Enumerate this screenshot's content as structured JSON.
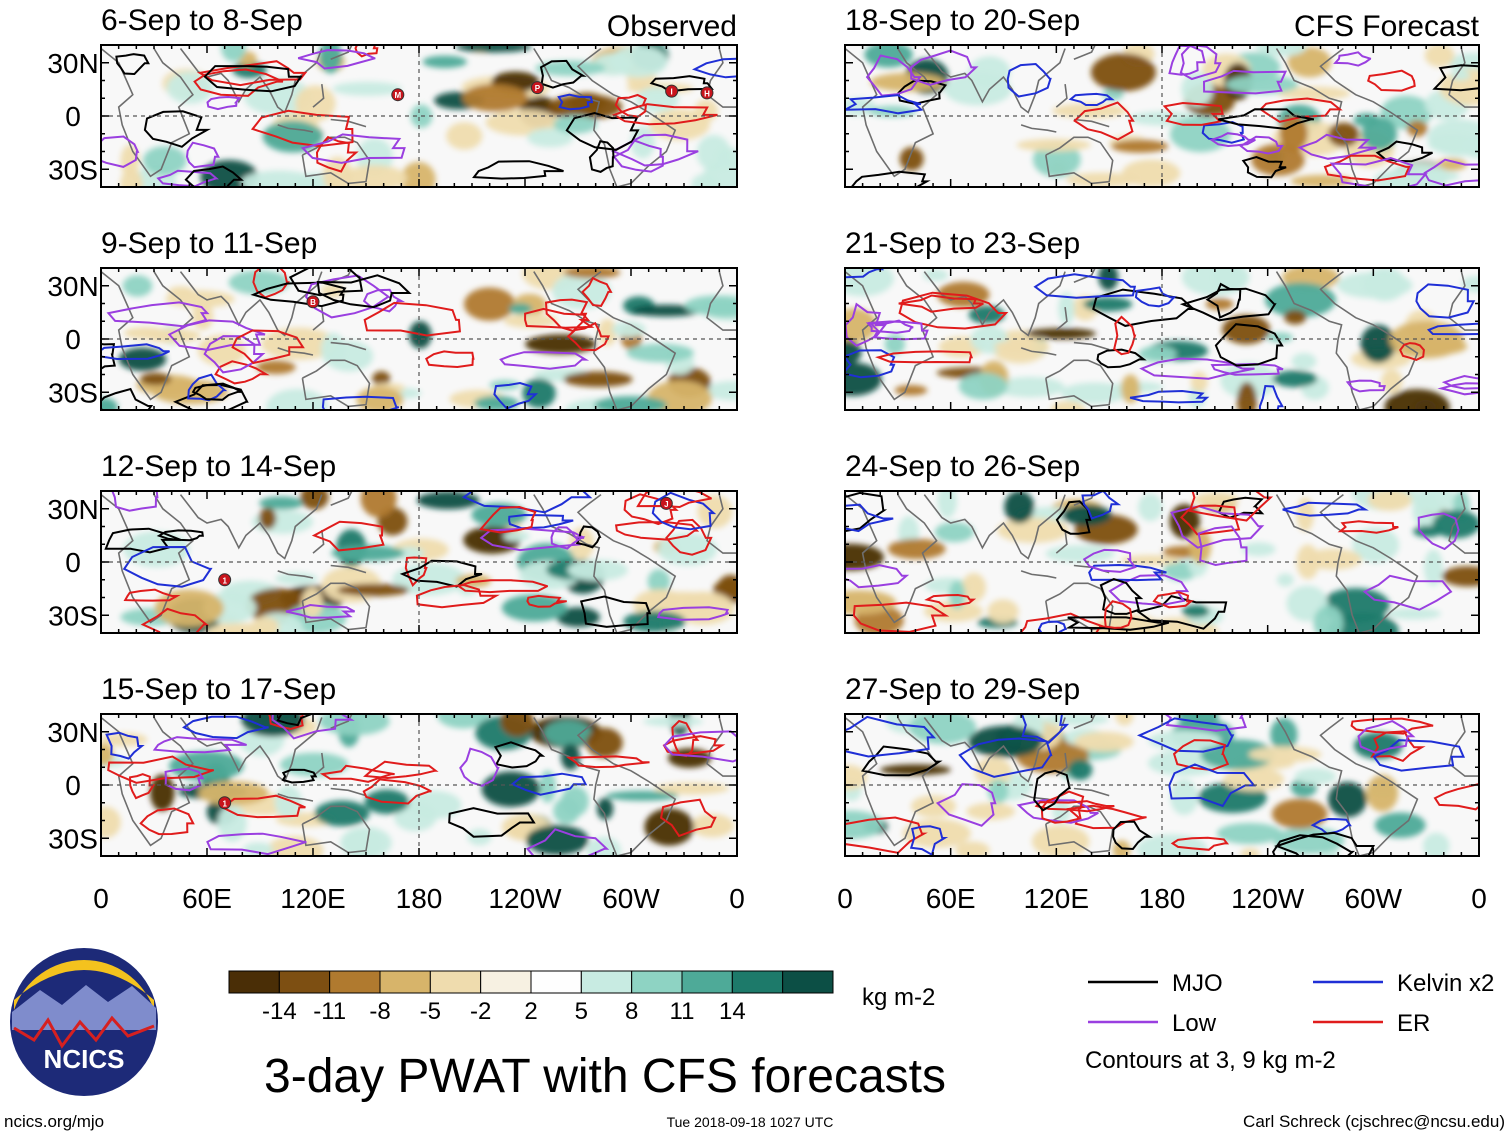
{
  "chart_data": {
    "type": "heatmap",
    "title": "3-day PWAT with CFS forecasts",
    "panel_labels": {
      "left": "Observed",
      "right": "CFS Forecast"
    },
    "panels": [
      {
        "column": "left",
        "row": 0,
        "title": "6-Sep to 8-Sep"
      },
      {
        "column": "left",
        "row": 1,
        "title": "9-Sep to 11-Sep"
      },
      {
        "column": "left",
        "row": 2,
        "title": "12-Sep to 14-Sep"
      },
      {
        "column": "left",
        "row": 3,
        "title": "15-Sep to 17-Sep"
      },
      {
        "column": "right",
        "row": 0,
        "title": "18-Sep to 20-Sep"
      },
      {
        "column": "right",
        "row": 1,
        "title": "21-Sep to 23-Sep"
      },
      {
        "column": "right",
        "row": 2,
        "title": "24-Sep to 26-Sep"
      },
      {
        "column": "right",
        "row": 3,
        "title": "27-Sep to 29-Sep"
      }
    ],
    "lat_ticks": [
      {
        "value": 30,
        "label": "30N"
      },
      {
        "value": 0,
        "label": "0"
      },
      {
        "value": -30,
        "label": "30S"
      }
    ],
    "lat_range": [
      -40,
      40
    ],
    "lon_ticks": [
      {
        "value": 0,
        "label": "0"
      },
      {
        "value": 60,
        "label": "60E"
      },
      {
        "value": 120,
        "label": "120E"
      },
      {
        "value": 180,
        "label": "180"
      },
      {
        "value": 240,
        "label": "120W"
      },
      {
        "value": 300,
        "label": "60W"
      },
      {
        "value": 360,
        "label": "0"
      }
    ],
    "lon_range": [
      0,
      360
    ],
    "colorbar": {
      "unit": "kg m-2",
      "labels": [
        "-14",
        "-11",
        "-8",
        "-5",
        "-2",
        "2",
        "5",
        "8",
        "11",
        "14"
      ],
      "colors": [
        "#4a2e06",
        "#7d4f12",
        "#b07a2f",
        "#d7b46a",
        "#efdcae",
        "#f7f1e2",
        "#fefefe",
        "#c8ebe2",
        "#8ed3c3",
        "#4eaa98",
        "#1d7a6a",
        "#0c4f45"
      ]
    },
    "contour_legend": [
      {
        "label": "MJO",
        "color": "#000000"
      },
      {
        "label": "Kelvin x2",
        "color": "#1f2fd6"
      },
      {
        "label": "Low",
        "color": "#9a3fe0"
      },
      {
        "label": "ER",
        "color": "#e01c1c"
      }
    ],
    "contour_note": "Contours at 3, 9 kg m-2",
    "storm_markers": [
      {
        "panel": 0,
        "letter": "M",
        "lon": 168,
        "lat": 12
      },
      {
        "panel": 0,
        "letter": "P",
        "lon": 247,
        "lat": 16
      },
      {
        "panel": 0,
        "letter": "I",
        "lon": 323,
        "lat": 14
      },
      {
        "panel": 0,
        "letter": "H",
        "lon": 343,
        "lat": 13
      },
      {
        "panel": 1,
        "letter": "B",
        "lon": 120,
        "lat": 21
      },
      {
        "panel": 2,
        "letter": "1",
        "lon": 70,
        "lat": -10
      },
      {
        "panel": 2,
        "letter": "J",
        "lon": 320,
        "lat": 33
      },
      {
        "panel": 3,
        "letter": "1",
        "lon": 70,
        "lat": -10
      }
    ]
  },
  "logo": {
    "text": "NCICS"
  },
  "footer": {
    "url": "ncics.org/mjo",
    "timestamp": "Tue 2018-09-18 1027 UTC",
    "author": "Carl Schreck (cjschrec@ncsu.edu)"
  },
  "palette": {
    "land": "#6e6e6e",
    "frame": "#000000"
  }
}
